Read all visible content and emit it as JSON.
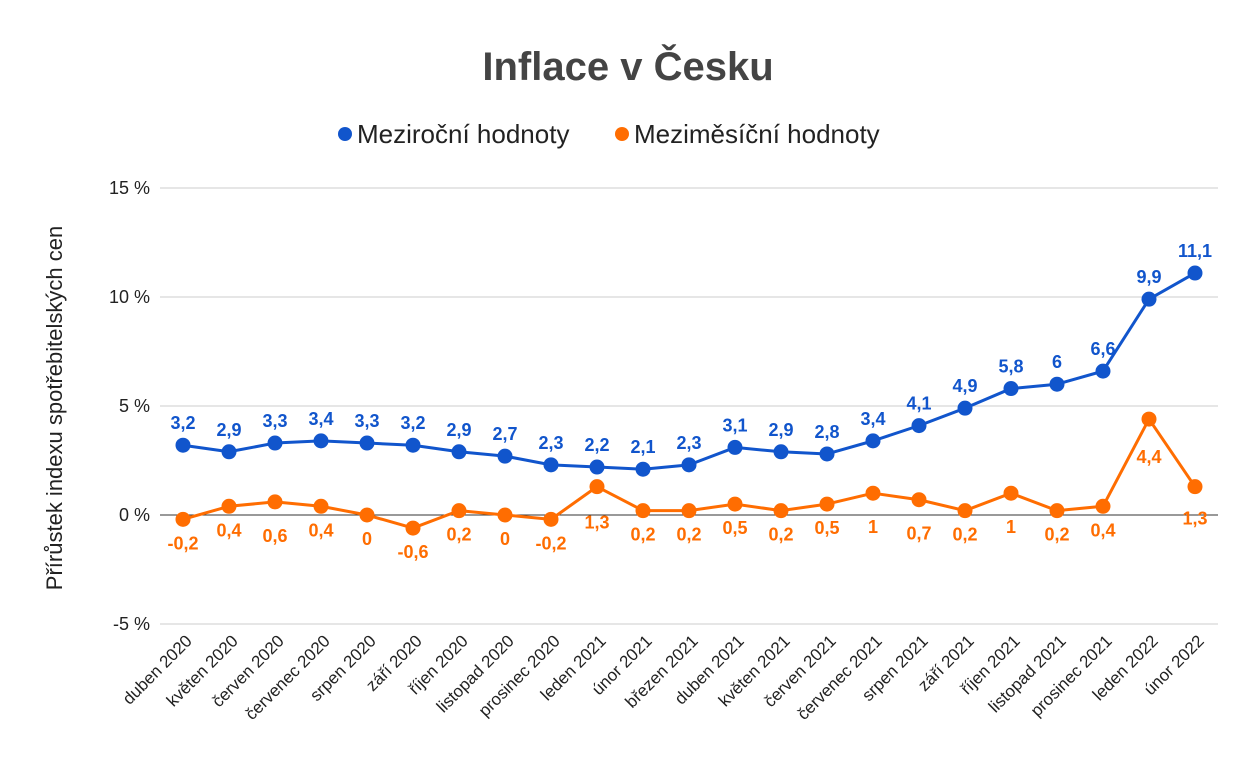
{
  "chart_data": {
    "type": "line",
    "title": "Inflace v Česku",
    "ylabel": "Přírůstek indexu spotřebitelských cen",
    "xlabel": "",
    "ylim": [
      -5,
      15
    ],
    "yticks": [
      "15 %",
      "10 %",
      "5 %",
      "0 %",
      "-5 %"
    ],
    "ytick_values": [
      15,
      10,
      5,
      0,
      -5
    ],
    "grid": true,
    "legend_position": "top-center",
    "categories": [
      "duben 2020",
      "květen 2020",
      "červen 2020",
      "červenec 2020",
      "srpen 2020",
      "září 2020",
      "říjen 2020",
      "listopad 2020",
      "prosinec 2020",
      "leden 2021",
      "únor 2021",
      "březen 2021",
      "duben 2021",
      "květen 2021",
      "červen 2021",
      "červenec 2021",
      "srpen 2021",
      "září 2021",
      "říjen 2021",
      "listopad 2021",
      "prosinec 2021",
      "leden 2022",
      "únor 2022"
    ],
    "series": [
      {
        "name": "Meziroční hodnoty",
        "color": "#1155cc",
        "values": [
          3.2,
          2.9,
          3.3,
          3.4,
          3.3,
          3.2,
          2.9,
          2.7,
          2.3,
          2.2,
          2.1,
          2.3,
          3.1,
          2.9,
          2.8,
          3.4,
          4.1,
          4.9,
          5.8,
          6,
          6.6,
          9.9,
          11.1
        ],
        "labels": [
          "3,2",
          "2,9",
          "3,3",
          "3,4",
          "3,3",
          "3,2",
          "2,9",
          "2,7",
          "2,3",
          "2,2",
          "2,1",
          "2,3",
          "3,1",
          "2,9",
          "2,8",
          "3,4",
          "4,1",
          "4,9",
          "5,8",
          "6",
          "6,6",
          "9,9",
          "11,1"
        ]
      },
      {
        "name": "Meziměsíční hodnoty",
        "color": "#ff6d01",
        "values": [
          -0.2,
          0.4,
          0.6,
          0.4,
          0,
          -0.6,
          0.2,
          0,
          -0.2,
          1.3,
          0.2,
          0.2,
          0.5,
          0.2,
          0.5,
          1,
          0.7,
          0.2,
          1,
          0.2,
          0.4,
          4.4,
          1.3
        ],
        "labels": [
          "-0,2",
          "0,4",
          "0,6",
          "0,4",
          "0",
          "-0,6",
          "0,2",
          "0",
          "-0,2",
          "1,3",
          "0,2",
          "0,2",
          "0,5",
          "0,2",
          "0,5",
          "1",
          "0,7",
          "0,2",
          "1",
          "0,2",
          "0,4",
          "4,4",
          "1,3"
        ]
      }
    ]
  }
}
